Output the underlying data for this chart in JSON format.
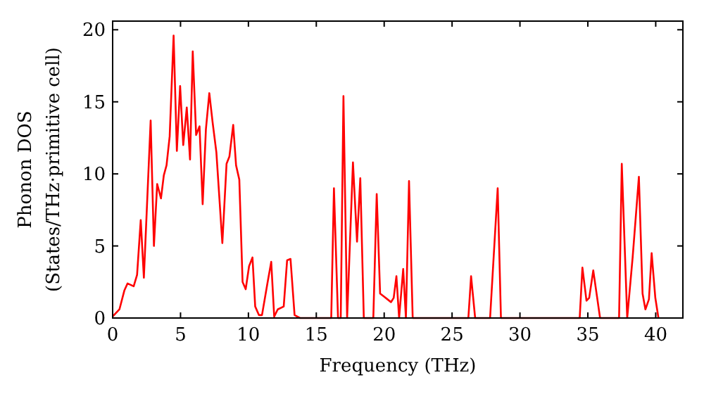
{
  "chart_data": {
    "type": "line",
    "xlabel": "Frequency (THz)",
    "ylabel": "Phonon DOS\n(States/THz·primitive cell)",
    "xlim": [
      0,
      42
    ],
    "ylim": [
      0,
      20.6
    ],
    "xticks": [
      0,
      5,
      10,
      15,
      20,
      25,
      30,
      35,
      40
    ],
    "yticks": [
      0,
      5,
      10,
      15,
      20
    ],
    "grid": false,
    "marker": "none",
    "line_style": "solid",
    "series": [
      {
        "color": "#ff0000",
        "x": [
          0,
          0.5,
          0.86,
          1.1,
          1.55,
          1.8,
          2.07,
          2.3,
          2.8,
          3.04,
          3.28,
          3.56,
          3.77,
          3.97,
          4.2,
          4.49,
          4.73,
          4.97,
          5.2,
          5.46,
          5.7,
          5.9,
          6.15,
          6.4,
          6.63,
          6.87,
          7.12,
          7.36,
          7.64,
          8.08,
          8.39,
          8.6,
          8.88,
          9.09,
          9.33,
          9.57,
          9.8,
          10.05,
          10.3,
          10.5,
          10.78,
          11,
          11.4,
          11.68,
          11.9,
          12.16,
          12.6,
          12.85,
          13.1,
          13.4,
          13.8,
          16.1,
          16.3,
          16.6,
          16.8,
          17,
          17.27,
          17.7,
          18,
          18.24,
          18.5,
          19.2,
          19.45,
          19.7,
          19.97,
          20.24,
          20.5,
          20.7,
          20.9,
          21.1,
          21.4,
          21.6,
          21.83,
          22.1,
          26.2,
          26.4,
          26.7,
          27.8,
          28.36,
          28.6,
          34.4,
          34.6,
          34.9,
          35.1,
          35.4,
          35.9,
          37.3,
          37.5,
          37.9,
          38.3,
          38.76,
          39.03,
          39.24,
          39.5,
          39.7,
          39.97,
          40.2
        ],
        "values": [
          0.1,
          0.6,
          1.9,
          2.4,
          2.2,
          3,
          6.8,
          2.8,
          13.7,
          5,
          9.3,
          8.3,
          9.9,
          10.6,
          12.6,
          19.6,
          11.6,
          16.1,
          12,
          14.6,
          11,
          18.5,
          12.7,
          13.3,
          7.9,
          13.1,
          15.6,
          13.6,
          11.5,
          5.2,
          10.7,
          11.2,
          13.4,
          10.6,
          9.6,
          2.5,
          2,
          3.6,
          4.2,
          0.8,
          0.2,
          0.2,
          2.4,
          3.9,
          0.1,
          0.6,
          0.8,
          4,
          4.1,
          0.2,
          0,
          0,
          9,
          0,
          0,
          15.4,
          0,
          10.8,
          5.3,
          9.7,
          0,
          0,
          8.6,
          1.7,
          1.5,
          1.3,
          1.1,
          1.4,
          2.9,
          0,
          3.4,
          0,
          9.5,
          0,
          0,
          2.9,
          0,
          0,
          9,
          0,
          0,
          3.5,
          1.2,
          1.4,
          3.3,
          0,
          0,
          10.7,
          0,
          4.2,
          9.8,
          1.7,
          0.6,
          1.3,
          4.5,
          1.4,
          0
        ]
      }
    ]
  }
}
